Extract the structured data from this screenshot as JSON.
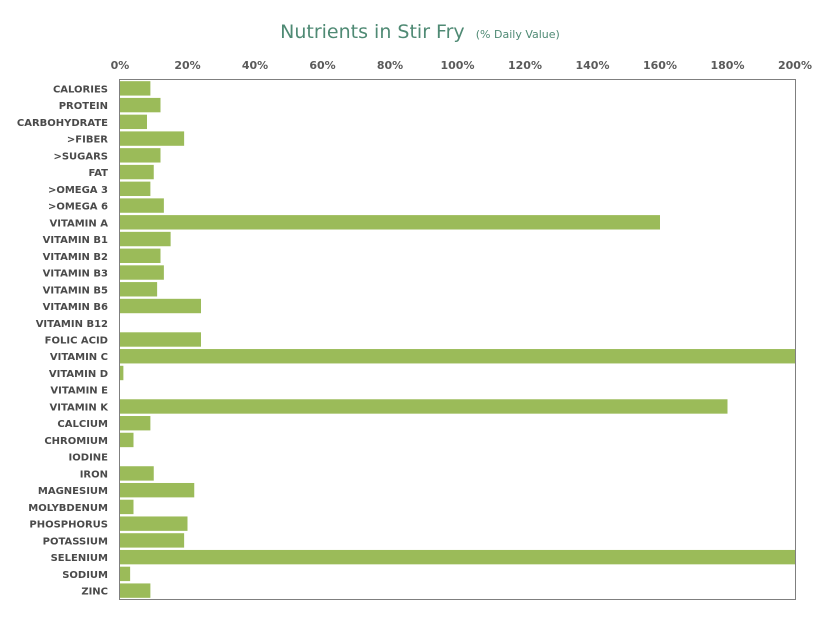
{
  "chart_data": {
    "type": "bar",
    "orientation": "horizontal",
    "title": "Nutrients in Stir Fry",
    "subtitle": "(% Daily Value)",
    "xlim": [
      0,
      200
    ],
    "x_ticks": [
      "0%",
      "20%",
      "40%",
      "60%",
      "80%",
      "100%",
      "120%",
      "140%",
      "160%",
      "180%",
      "200%"
    ],
    "x_axis_position": "top",
    "grid": false,
    "bar_color": "#9bbb59",
    "title_color": "#4f8a74",
    "categories": [
      "CALORIES",
      "PROTEIN",
      "CARBOHYDRATE",
      ">FIBER",
      ">SUGARS",
      "FAT",
      ">OMEGA 3",
      ">OMEGA 6",
      "VITAMIN A",
      "VITAMIN B1",
      "VITAMIN B2",
      "VITAMIN B3",
      "VITAMIN B5",
      "VITAMIN B6",
      "VITAMIN B12",
      "FOLIC ACID",
      "VITAMIN C",
      "VITAMIN D",
      "VITAMIN E",
      "VITAMIN K",
      "CALCIUM",
      "CHROMIUM",
      "IODINE",
      "IRON",
      "MAGNESIUM",
      "MOLYBDENUM",
      "PHOSPHORUS",
      "POTASSIUM",
      "SELENIUM",
      "SODIUM",
      "ZINC"
    ],
    "values": [
      9,
      12,
      8,
      19,
      12,
      10,
      9,
      13,
      160,
      15,
      12,
      13,
      11,
      24,
      0,
      24,
      200,
      1,
      0,
      180,
      9,
      4,
      0,
      10,
      22,
      4,
      20,
      19,
      200,
      3,
      9
    ]
  }
}
